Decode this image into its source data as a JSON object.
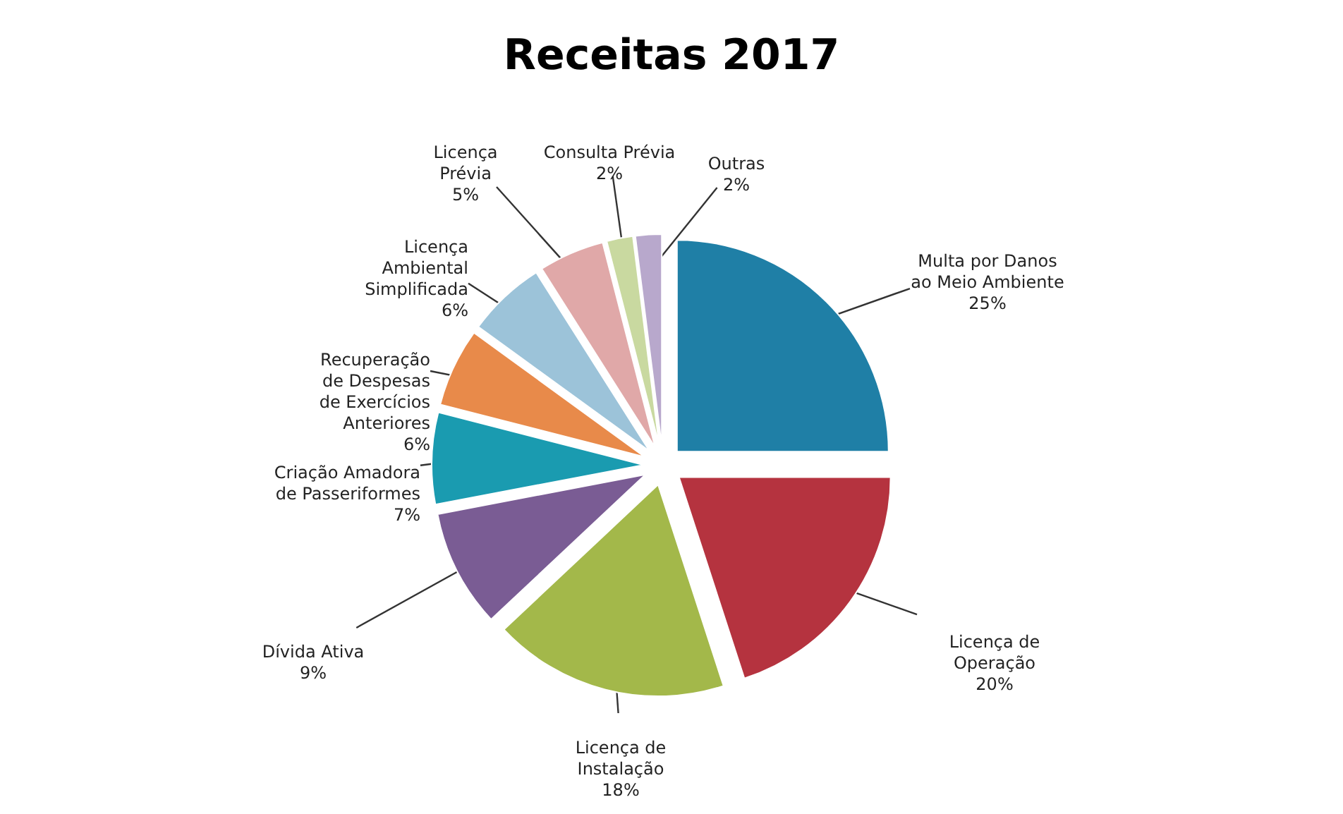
{
  "chart_data": {
    "type": "pie",
    "title": "Receitas 2017",
    "categories": [
      "Multa por Danos ao Meio Ambiente",
      "Licença de Operação",
      "Licença de Instalação",
      "Dívida Ativa",
      "Criação Amadora de Passeriformes",
      "Recuperação de Despesas de Exercícios Anteriores",
      "Licença Ambiental Simplificada",
      "Licença Prévia",
      "Consulta Prévia",
      "Outras"
    ],
    "values": [
      25,
      20,
      18,
      9,
      7,
      6,
      6,
      5,
      2,
      2
    ],
    "value_labels": [
      "25%",
      "20%",
      "18%",
      "9%",
      "7%",
      "6%",
      "6%",
      "5%",
      "2%",
      "2%"
    ],
    "data_labels": true,
    "colors": [
      "#1f7fa6",
      "#b5333f",
      "#a3b84a",
      "#7a5c94",
      "#1a9bb0",
      "#e88a4a",
      "#9cc3d9",
      "#e0a8a8",
      "#c9d9a0",
      "#b8a8cc"
    ]
  }
}
